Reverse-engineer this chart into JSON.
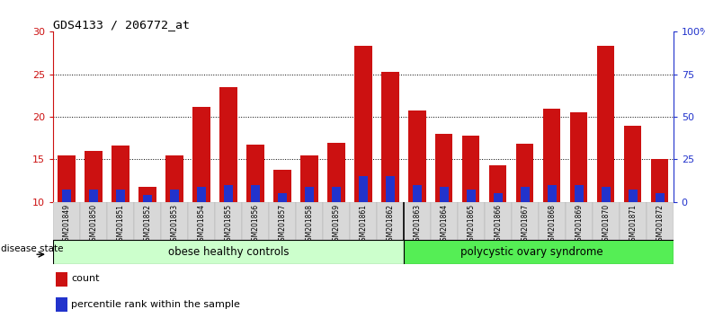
{
  "title": "GDS4133 / 206772_at",
  "samples": [
    "GSM201849",
    "GSM201850",
    "GSM201851",
    "GSM201852",
    "GSM201853",
    "GSM201854",
    "GSM201855",
    "GSM201856",
    "GSM201857",
    "GSM201858",
    "GSM201859",
    "GSM201861",
    "GSM201862",
    "GSM201863",
    "GSM201864",
    "GSM201865",
    "GSM201866",
    "GSM201867",
    "GSM201868",
    "GSM201869",
    "GSM201870",
    "GSM201871",
    "GSM201872"
  ],
  "red_values": [
    15.5,
    16.0,
    16.6,
    11.8,
    15.5,
    21.2,
    23.5,
    16.7,
    13.8,
    15.5,
    17.0,
    28.3,
    25.3,
    20.8,
    18.0,
    17.8,
    14.3,
    16.8,
    21.0,
    20.5,
    28.4,
    19.0,
    15.0
  ],
  "blue_values": [
    11.5,
    11.5,
    11.5,
    10.8,
    11.5,
    11.8,
    12.0,
    12.0,
    11.0,
    11.8,
    11.8,
    13.0,
    13.0,
    12.0,
    11.8,
    11.5,
    11.0,
    11.8,
    12.0,
    12.0,
    11.8,
    11.5,
    11.0
  ],
  "group1_label": "obese healthy controls",
  "group2_label": "polycystic ovary syndrome",
  "group1_count": 13,
  "group2_count": 10,
  "disease_state_label": "disease state",
  "ylim_left": [
    10,
    30
  ],
  "ylim_right": [
    0,
    100
  ],
  "yticks_left": [
    10,
    15,
    20,
    25,
    30
  ],
  "yticks_right": [
    0,
    25,
    50,
    75,
    100
  ],
  "bar_color_red": "#cc1111",
  "bar_color_blue": "#2233cc",
  "group1_color": "#ccffcc",
  "group2_color": "#55ee55",
  "legend_count_label": "count",
  "legend_pct_label": "percentile rank within the sample",
  "bar_width": 0.65,
  "ybase": 10
}
